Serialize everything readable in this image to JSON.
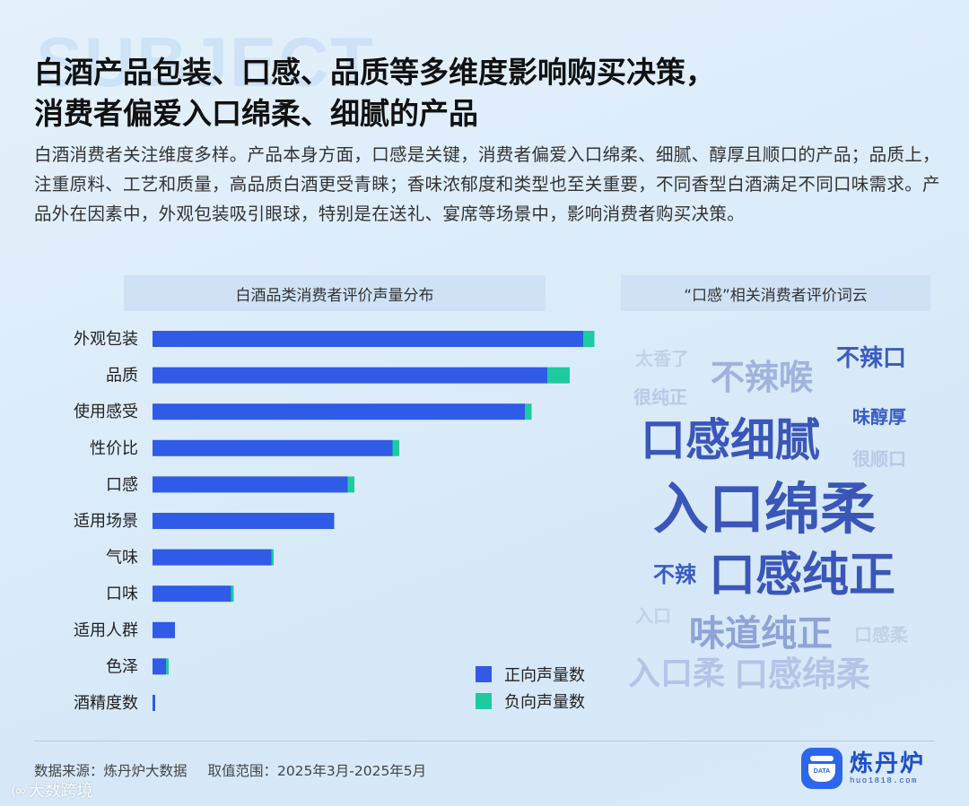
{
  "background_word": "SUBJECT",
  "title_lines": [
    "白酒产品包装、口感、品质等多维度影响购买决策，",
    "消费者偏爱入口绵柔、细腻的产品"
  ],
  "description": "白酒消费者关注维度多样。产品本身方面，口感是关键，消费者偏爱入口绵柔、细腻、醇厚且顺口的产品；品质上，注重原料、工艺和质量，高品质白酒更受青睐；香味浓郁度和类型也至关重要，不同香型白酒满足不同口味需求。产品外在因素中，外观包装吸引眼球，特别是在送礼、宴席等场景中，影响消费者购买决策。",
  "left_panel_title": "白酒品类消费者评价声量分布",
  "right_panel_title": "“口感”相关消费者评价词云",
  "colors": {
    "positive": "#2f5be6",
    "negative": "#1ecb9e",
    "accent": "#2b67e8"
  },
  "chart_data": {
    "type": "bar",
    "orientation": "horizontal",
    "stacked": true,
    "categories": [
      "外观包装",
      "品质",
      "使用感受",
      "性价比",
      "口感",
      "适用场景",
      "气味",
      "口味",
      "适用人群",
      "色泽",
      "酒精度数"
    ],
    "series": [
      {
        "name": "正向声量数",
        "values": [
          96,
          88,
          83,
          53.5,
          43.5,
          40.5,
          26.5,
          17.5,
          5,
          3,
          0.6
        ]
      },
      {
        "name": "负向声量数",
        "values": [
          2.5,
          5,
          1.5,
          1.5,
          1.5,
          0,
          0.5,
          0.6,
          0,
          0.6,
          0
        ]
      }
    ],
    "xlim": [
      0,
      100
    ],
    "grid": false,
    "legend_position": "bottom-right",
    "axis_numbers_shown": false
  },
  "word_cloud": [
    {
      "text": "太香了",
      "size": 20,
      "color": "#c3d0e8"
    },
    {
      "text": "不辣喉",
      "size": 38,
      "color": "#9fb3dd"
    },
    {
      "text": "不辣口",
      "size": 26,
      "color": "#3a5cc4"
    },
    {
      "text": "很纯正",
      "size": 20,
      "color": "#b9c8e6"
    },
    {
      "text": "味醇厚",
      "size": 20,
      "color": "#3a5cc4"
    },
    {
      "text": "口感细腻",
      "size": 50,
      "color": "#3a56b8"
    },
    {
      "text": "很顺口",
      "size": 20,
      "color": "#b9c8e6"
    },
    {
      "text": "入口绵柔",
      "size": 62,
      "color": "#3a56b8"
    },
    {
      "text": "不辣",
      "size": 24,
      "color": "#3a5cc4"
    },
    {
      "text": "口感纯正",
      "size": 52,
      "color": "#3a56b8"
    },
    {
      "text": "入口",
      "size": 20,
      "color": "#c3d0e8"
    },
    {
      "text": "味道纯正",
      "size": 40,
      "color": "#8ea3d6"
    },
    {
      "text": "口感柔",
      "size": 20,
      "color": "#c3d0e8"
    },
    {
      "text": "入口柔",
      "size": 36,
      "color": "#b4c3e6"
    },
    {
      "text": "口感绵柔",
      "size": 38,
      "color": "#b4c3e6"
    }
  ],
  "footer": {
    "source": "数据来源：炼丹炉大数据",
    "range": "取值范围：2025年3月-2025年5月"
  },
  "logo": {
    "name": "炼丹炉",
    "url": "huo1818.com",
    "icon_text": "DATA"
  },
  "watermark": "大数跨境"
}
